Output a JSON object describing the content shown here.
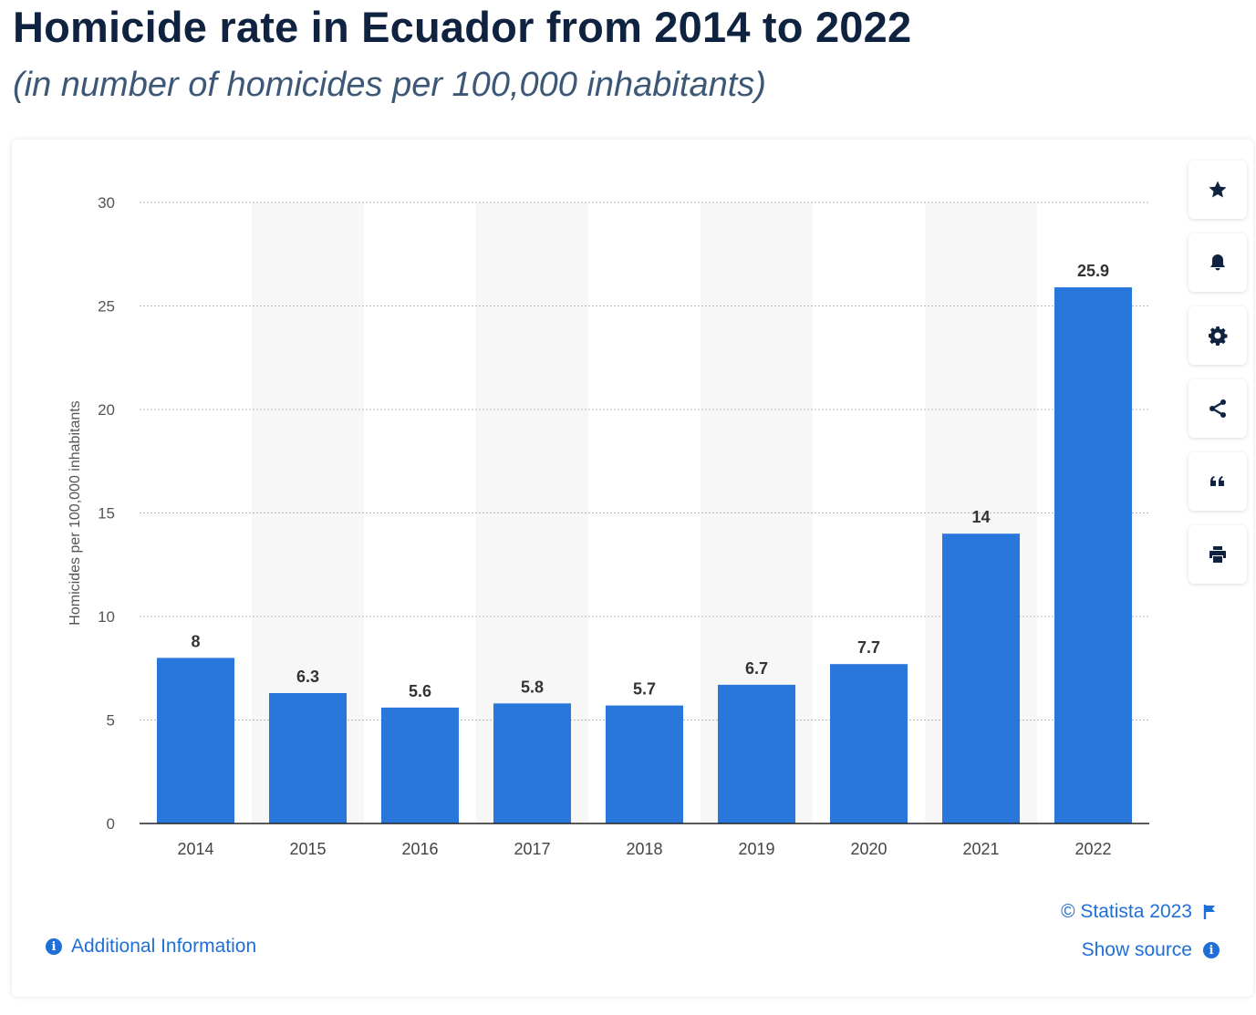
{
  "header": {
    "title": "Homicide rate in Ecuador from 2014 to 2022",
    "subtitle": "(in number of homicides per 100,000 inhabitants)"
  },
  "footer": {
    "additional_info": "Additional Information",
    "credit": "© Statista 2023",
    "show_source": "Show source"
  },
  "toolbar": {
    "icons": [
      "star-icon",
      "bell-icon",
      "gear-icon",
      "share-icon",
      "quote-icon",
      "print-icon"
    ]
  },
  "colors": {
    "bar": "#2a77db",
    "title": "#0f2341",
    "subtitle": "#3d5877",
    "link": "#1f6fd8",
    "band": "#f7f7f7"
  },
  "chart_data": {
    "type": "bar",
    "categories": [
      "2014",
      "2015",
      "2016",
      "2017",
      "2018",
      "2019",
      "2020",
      "2021",
      "2022"
    ],
    "values": [
      8,
      6.3,
      5.6,
      5.8,
      5.7,
      6.7,
      7.7,
      14,
      25.9
    ],
    "value_labels": [
      "8",
      "6.3",
      "5.6",
      "5.8",
      "5.7",
      "6.7",
      "7.7",
      "14",
      "25.9"
    ],
    "ylabel": "Homicides per 100,000 inhabitants",
    "xlabel": "",
    "ylim": [
      0,
      30
    ],
    "yticks": [
      "0",
      "5",
      "10",
      "15",
      "20",
      "25",
      "30"
    ],
    "grid": true
  }
}
